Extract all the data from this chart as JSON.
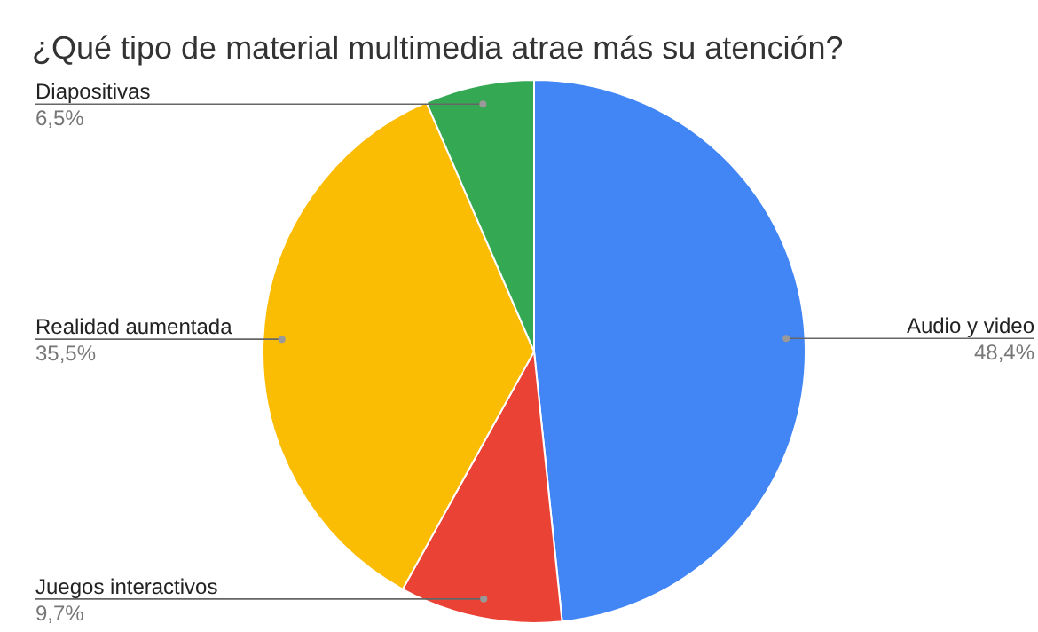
{
  "chart_data": {
    "type": "pie",
    "title": "¿Qué tipo de material multimedia atrae más su atención?",
    "categories": [
      "Audio y video",
      "Juegos interactivos",
      "Realidad aumentada",
      "Diapositivas"
    ],
    "values": [
      48.4,
      9.7,
      35.5,
      6.5
    ],
    "colors": [
      "#4285f4",
      "#ea4335",
      "#fbbc04",
      "#34a853"
    ],
    "value_labels": [
      "48,4%",
      "9,7%",
      "35,5%",
      "6,5%"
    ]
  }
}
